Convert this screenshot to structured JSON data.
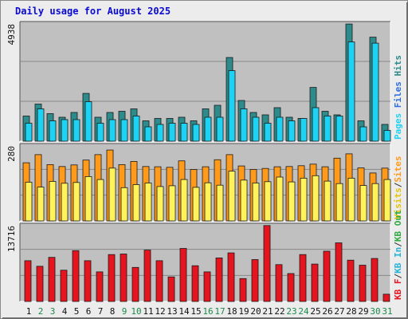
{
  "title": "Daily usage for August 2025",
  "chart_data": {
    "type": "bar",
    "title": "Daily usage for August 2025",
    "categories": [
      "1",
      "2",
      "3",
      "4",
      "5",
      "6",
      "7",
      "8",
      "9",
      "10",
      "11",
      "12",
      "13",
      "14",
      "15",
      "16",
      "17",
      "18",
      "19",
      "20",
      "21",
      "22",
      "23",
      "24",
      "25",
      "26",
      "27",
      "28",
      "29",
      "30",
      "31"
    ],
    "weekend_days": [
      "2",
      "3",
      "9",
      "10",
      "16",
      "17",
      "23",
      "24",
      "30",
      "31"
    ],
    "colors": {
      "pages": "#0f8a5e",
      "files": "#1ed2f4",
      "hits": "#2e8b8b",
      "visits": "#ff9a1a",
      "sites": "#fff25a",
      "kb_in": "#26b3d8",
      "kb_out": "#2eaa3e",
      "kb_f": "#e5141e",
      "weekday_label": "#111111",
      "weekend_label": "#1a8a4a",
      "panel_bg": "#c0c0c0",
      "title": "#0a0ad0"
    },
    "panels": [
      {
        "id": "top",
        "ymax_label": "4938",
        "ylim": [
          0,
          4938
        ],
        "right_legend": [
          {
            "text": "Pages",
            "color": "#1ed2f4"
          },
          {
            "text": "Files",
            "color": "#2b6fe0"
          },
          {
            "text": "Hits",
            "color": "#2e8b8b"
          }
        ],
        "series": [
          {
            "key": "hits",
            "values": [
              1050,
              1550,
              1150,
              1000,
              1200,
              2000,
              1000,
              1200,
              1250,
              1350,
              850,
              950,
              950,
              1000,
              850,
              1350,
              1500,
              3500,
              1700,
              1200,
              1100,
              1400,
              1000,
              950,
              2250,
              1250,
              1100,
              4900,
              850,
              4350,
              700
            ]
          },
          {
            "key": "files",
            "values": [
              750,
              1350,
              850,
              900,
              900,
              1650,
              750,
              900,
              900,
              1050,
              600,
              700,
              750,
              750,
              700,
              1000,
              1000,
              2950,
              1350,
              1000,
              750,
              1000,
              850,
              950,
              1400,
              1050,
              1050,
              4150,
              600,
              4100,
              450
            ]
          }
        ]
      },
      {
        "id": "middle",
        "ymax_label": "280",
        "ylim": [
          0,
          280
        ],
        "right_legend": [
          {
            "text": "Visits",
            "color": "#e6c400"
          },
          {
            "text": "/",
            "color": "#333333"
          },
          {
            "text": "Sites",
            "color": "#ff9a1a"
          }
        ],
        "series": [
          {
            "key": "visits",
            "values": [
              215,
              245,
              208,
              201,
              207,
              225,
              245,
              262,
              208,
              220,
              201,
              200,
              198,
              222,
              190,
              200,
              226,
              245,
              203,
              190,
              194,
              200,
              201,
              204,
              210,
              200,
              232,
              248,
              196,
              177,
              195
            ]
          },
          {
            "key": "sites",
            "values": [
              143,
              125,
              146,
              139,
              142,
              164,
              153,
              195,
              123,
              134,
              140,
              127,
              130,
              153,
              124,
              141,
              132,
              184,
              151,
              140,
              145,
              162,
              144,
              158,
              167,
              147,
              138,
              158,
              131,
              138,
              153
            ]
          }
        ]
      },
      {
        "id": "bottom",
        "ymax_label": "13716",
        "ylim": [
          0,
          13716
        ],
        "right_legend": [
          {
            "text": "KB F",
            "color": "#e5141e"
          },
          {
            "text": "/",
            "color": "#333333"
          },
          {
            "text": "KB In",
            "color": "#26b3d8"
          },
          {
            "text": "/",
            "color": "#333333"
          },
          {
            "text": "KB Out",
            "color": "#2eaa3e"
          }
        ],
        "series": [
          {
            "key": "kb_f",
            "values": [
              7300,
              6300,
              7900,
              5600,
              9100,
              7300,
              5300,
              8400,
              8500,
              6100,
              9200,
              7300,
              4400,
              9500,
              6400,
              5300,
              7800,
              8700,
              4100,
              7500,
              13600,
              6600,
              5000,
              8400,
              6700,
              9000,
              10500,
              7400,
              6500,
              7700,
              1300
            ]
          }
        ]
      }
    ]
  }
}
